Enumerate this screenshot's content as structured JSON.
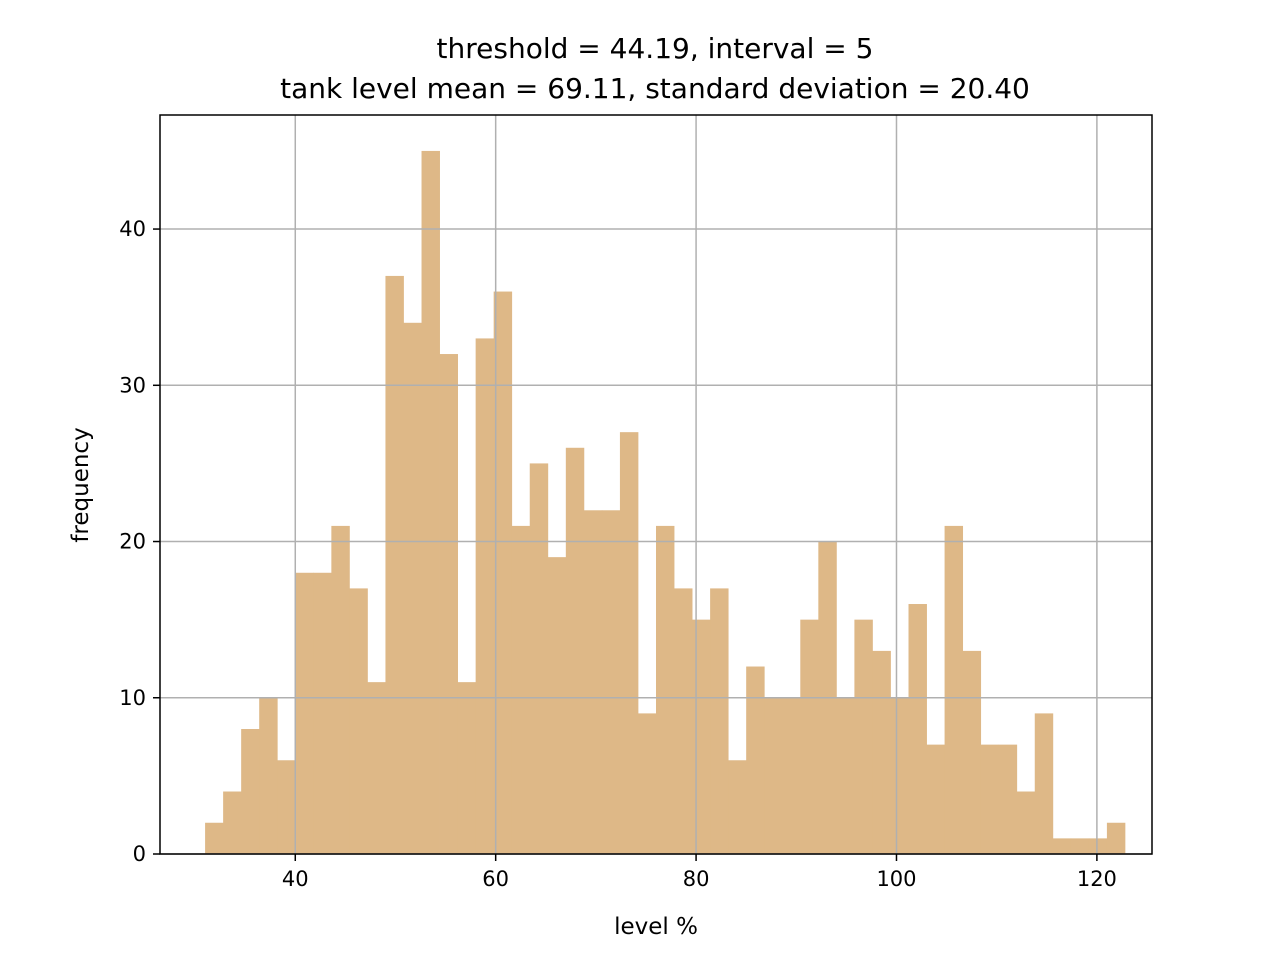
{
  "chart_data": {
    "type": "bar",
    "title": "threshold = 44.19, interval = 5",
    "subtitle": "tank level mean = 69.11, standard deviation = 20.40",
    "xlabel": "level %",
    "ylabel": "frequency",
    "xlim": [
      26.5,
      125.5
    ],
    "ylim": [
      0,
      47.3
    ],
    "xticks": [
      40,
      60,
      80,
      100,
      120
    ],
    "yticks": [
      0,
      10,
      20,
      30,
      40
    ],
    "grid": true,
    "bar_color": "#deb887",
    "bin_start": 31.0,
    "bin_width": 1.8,
    "values": [
      2,
      4,
      8,
      10,
      6,
      18,
      18,
      21,
      17,
      11,
      37,
      34,
      45,
      32,
      11,
      33,
      36,
      21,
      25,
      19,
      26,
      22,
      22,
      27,
      9,
      21,
      17,
      15,
      17,
      6,
      12,
      10,
      10,
      15,
      20,
      10,
      15,
      13,
      10,
      16,
      7,
      21,
      13,
      7,
      7,
      4,
      9,
      1,
      1,
      1,
      2
    ]
  }
}
